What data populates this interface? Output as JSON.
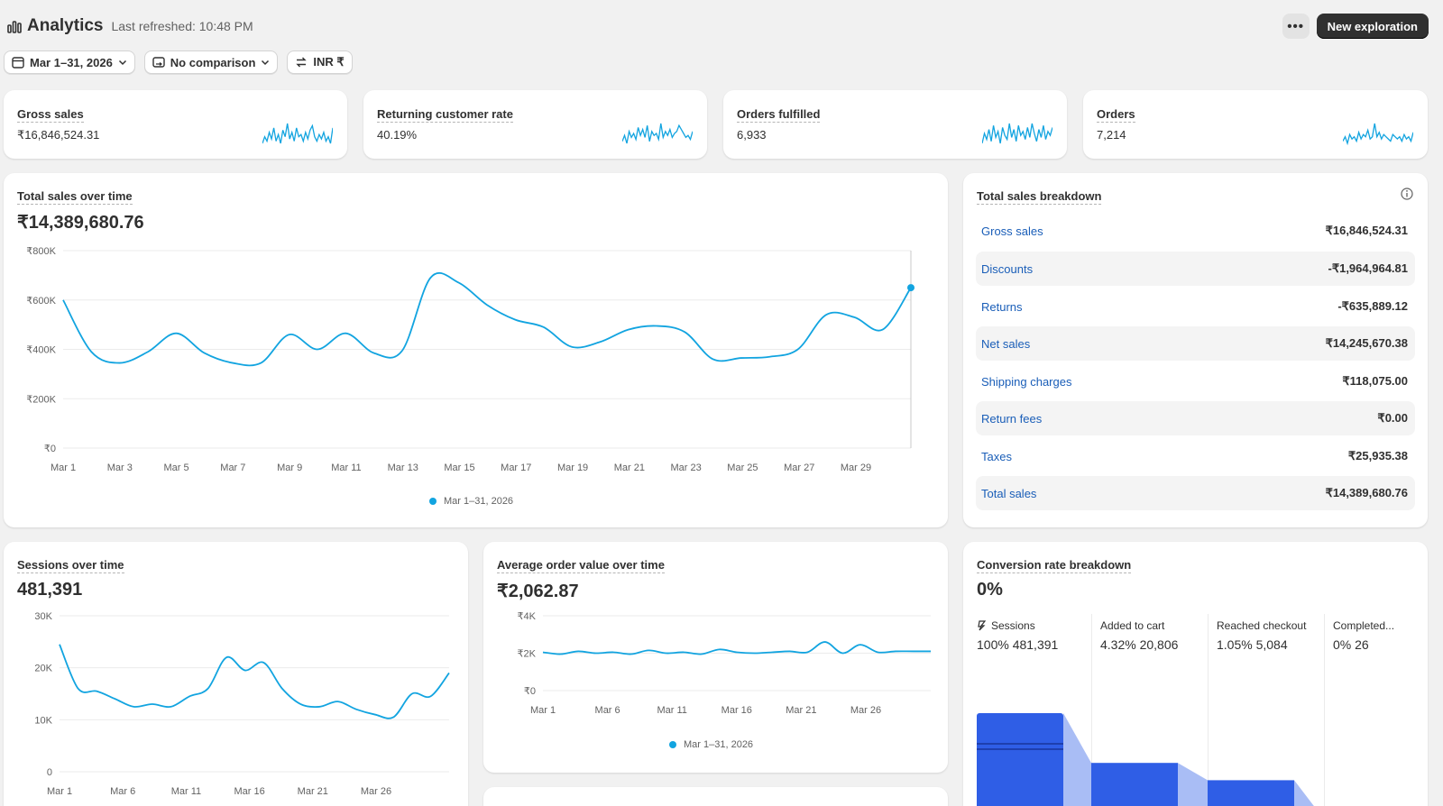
{
  "header": {
    "title": "Analytics",
    "refreshed": "Last refreshed: 10:48 PM",
    "more_label": "•••",
    "new_button": "New exploration"
  },
  "filters": {
    "date": "Mar 1–31, 2026",
    "comparison": "No comparison",
    "currency": "INR ₹"
  },
  "kpis": [
    {
      "label": "Gross sales",
      "value": "₹16,846,524.31",
      "spark": [
        9,
        12,
        10,
        14,
        11,
        16,
        10,
        13,
        9,
        15,
        12,
        18,
        11,
        14,
        10,
        16,
        12,
        13,
        10,
        14,
        11,
        15,
        17,
        12,
        10,
        13,
        11,
        14,
        10,
        12,
        9,
        16
      ]
    },
    {
      "label": "Returning customer rate",
      "value": "40.19%",
      "spark": [
        10,
        13,
        9,
        15,
        12,
        14,
        11,
        17,
        13,
        16,
        12,
        18,
        10,
        15,
        13,
        14,
        11,
        19,
        12,
        15,
        13,
        16,
        12,
        14,
        15,
        18,
        16,
        14,
        12,
        13,
        11,
        15
      ]
    },
    {
      "label": "Orders fulfilled",
      "value": "6,933",
      "spark": [
        9,
        14,
        11,
        16,
        10,
        18,
        12,
        15,
        9,
        17,
        13,
        11,
        19,
        12,
        16,
        10,
        18,
        13,
        15,
        11,
        17,
        12,
        19,
        14,
        10,
        16,
        12,
        18,
        11,
        15,
        13,
        17
      ]
    },
    {
      "label": "Orders",
      "value": "7,214",
      "spark": [
        10,
        12,
        9,
        13,
        11,
        12,
        10,
        14,
        11,
        13,
        12,
        15,
        11,
        12,
        18,
        12,
        14,
        11,
        13,
        12,
        11,
        10,
        13,
        12,
        11,
        12,
        10,
        13,
        11,
        12,
        10,
        14
      ]
    }
  ],
  "colors": {
    "line": "#12a4e0",
    "funnel": "#2f5ee6",
    "funnel_light": "#a9bdf5",
    "link": "#1a5eb8"
  },
  "total_sales": {
    "title": "Total sales over time",
    "value": "₹14,389,680.76",
    "legend": "Mar 1–31, 2026"
  },
  "breakdown": {
    "title": "Total sales breakdown",
    "info_icon": "info-icon",
    "rows": [
      {
        "label": "Gross sales",
        "value": "₹16,846,524.31"
      },
      {
        "label": "Discounts",
        "value": "-₹1,964,964.81"
      },
      {
        "label": "Returns",
        "value": "-₹635,889.12"
      },
      {
        "label": "Net sales",
        "value": "₹14,245,670.38"
      },
      {
        "label": "Shipping charges",
        "value": "₹118,075.00"
      },
      {
        "label": "Return fees",
        "value": "₹0.00"
      },
      {
        "label": "Taxes",
        "value": "₹25,935.38"
      },
      {
        "label": "Total sales",
        "value": "₹14,389,680.76"
      }
    ]
  },
  "sessions": {
    "title": "Sessions over time",
    "value": "481,391"
  },
  "aov": {
    "title": "Average order value over time",
    "value": "₹2,062.87",
    "legend": "Mar 1–31, 2026"
  },
  "conversion": {
    "title": "Conversion rate breakdown",
    "value": "0%",
    "stages": [
      {
        "label": "Sessions",
        "stat": "100% 481,391",
        "fraction": 1.0
      },
      {
        "label": "Added to cart",
        "stat": "4.32% 20,806",
        "fraction": 0.54
      },
      {
        "label": "Reached checkout",
        "stat": "1.05% 5,084",
        "fraction": 0.38
      },
      {
        "label": "Completed...",
        "stat": "0% 26",
        "fraction": 0.02
      }
    ]
  },
  "chart_data": [
    {
      "type": "line",
      "title": "Total sales over time",
      "x": [
        "Mar 1",
        "Mar 2",
        "Mar 3",
        "Mar 4",
        "Mar 5",
        "Mar 6",
        "Mar 7",
        "Mar 8",
        "Mar 9",
        "Mar 10",
        "Mar 11",
        "Mar 12",
        "Mar 13",
        "Mar 14",
        "Mar 15",
        "Mar 16",
        "Mar 17",
        "Mar 18",
        "Mar 19",
        "Mar 20",
        "Mar 21",
        "Mar 22",
        "Mar 23",
        "Mar 24",
        "Mar 25",
        "Mar 26",
        "Mar 27",
        "Mar 28",
        "Mar 29",
        "Mar 30",
        "Mar 31"
      ],
      "x_ticks": [
        "Mar 1",
        "Mar 3",
        "Mar 5",
        "Mar 7",
        "Mar 9",
        "Mar 11",
        "Mar 13",
        "Mar 15",
        "Mar 17",
        "Mar 19",
        "Mar 21",
        "Mar 23",
        "Mar 25",
        "Mar 27",
        "Mar 29"
      ],
      "y_ticks": [
        "₹0",
        "₹200K",
        "₹400K",
        "₹600K",
        "₹800K"
      ],
      "ylim": [
        0,
        800000
      ],
      "series": [
        {
          "name": "Mar 1–31, 2026",
          "values": [
            600000,
            390000,
            345000,
            390000,
            465000,
            385000,
            345000,
            345000,
            460000,
            400000,
            465000,
            385000,
            395000,
            690000,
            670000,
            580000,
            520000,
            490000,
            410000,
            430000,
            480000,
            495000,
            470000,
            360000,
            365000,
            370000,
            400000,
            540000,
            530000,
            480000,
            650000
          ]
        }
      ]
    },
    {
      "type": "line",
      "title": "Sessions over time",
      "x_ticks": [
        "Mar 1",
        "Mar 6",
        "Mar 11",
        "Mar 16",
        "Mar 21",
        "Mar 26"
      ],
      "y_ticks": [
        "0",
        "10K",
        "20K",
        "30K"
      ],
      "ylim": [
        0,
        30000
      ],
      "series": [
        {
          "name": "Sessions",
          "values": [
            24500,
            16000,
            15500,
            14000,
            12500,
            13000,
            12500,
            14500,
            16000,
            22000,
            19500,
            21000,
            16000,
            13000,
            12500,
            13500,
            12000,
            11000,
            10500,
            15000,
            14500,
            19000
          ]
        }
      ]
    },
    {
      "type": "line",
      "title": "Average order value over time",
      "x_ticks": [
        "Mar 1",
        "Mar 6",
        "Mar 11",
        "Mar 16",
        "Mar 21",
        "Mar 26"
      ],
      "y_ticks": [
        "₹0",
        "₹2K",
        "₹4K"
      ],
      "ylim": [
        0,
        4000
      ],
      "series": [
        {
          "name": "Mar 1–31, 2026",
          "values": [
            2050,
            1950,
            2100,
            2000,
            2050,
            1950,
            2150,
            2000,
            2050,
            1950,
            2200,
            2050,
            2000,
            2050,
            2100,
            2050,
            2600,
            2000,
            2450,
            2050,
            2100,
            2100,
            2100
          ]
        }
      ]
    }
  ]
}
